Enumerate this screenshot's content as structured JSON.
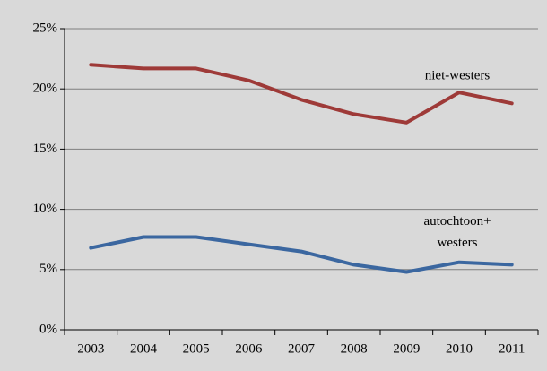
{
  "chart_data": {
    "type": "line",
    "categories": [
      "2003",
      "2004",
      "2005",
      "2006",
      "2007",
      "2008",
      "2009",
      "2010",
      "2011"
    ],
    "series": [
      {
        "name": "niet-westers",
        "color": "#9e3a38",
        "values": [
          22.0,
          21.7,
          21.7,
          20.7,
          19.1,
          17.9,
          17.2,
          19.7,
          18.8
        ]
      },
      {
        "name": "autochtoon+ westers",
        "color": "#3b67a0",
        "values": [
          6.8,
          7.7,
          7.7,
          7.1,
          6.5,
          5.4,
          4.8,
          5.6,
          5.4
        ]
      }
    ],
    "ylim": [
      0,
      25
    ],
    "yticks": [
      {
        "value": 0,
        "label": "0%"
      },
      {
        "value": 5,
        "label": "5%"
      },
      {
        "value": 10,
        "label": "10%"
      },
      {
        "value": 15,
        "label": "15%"
      },
      {
        "value": 20,
        "label": "20%"
      },
      {
        "value": 25,
        "label": "25%"
      }
    ],
    "grid": true
  }
}
